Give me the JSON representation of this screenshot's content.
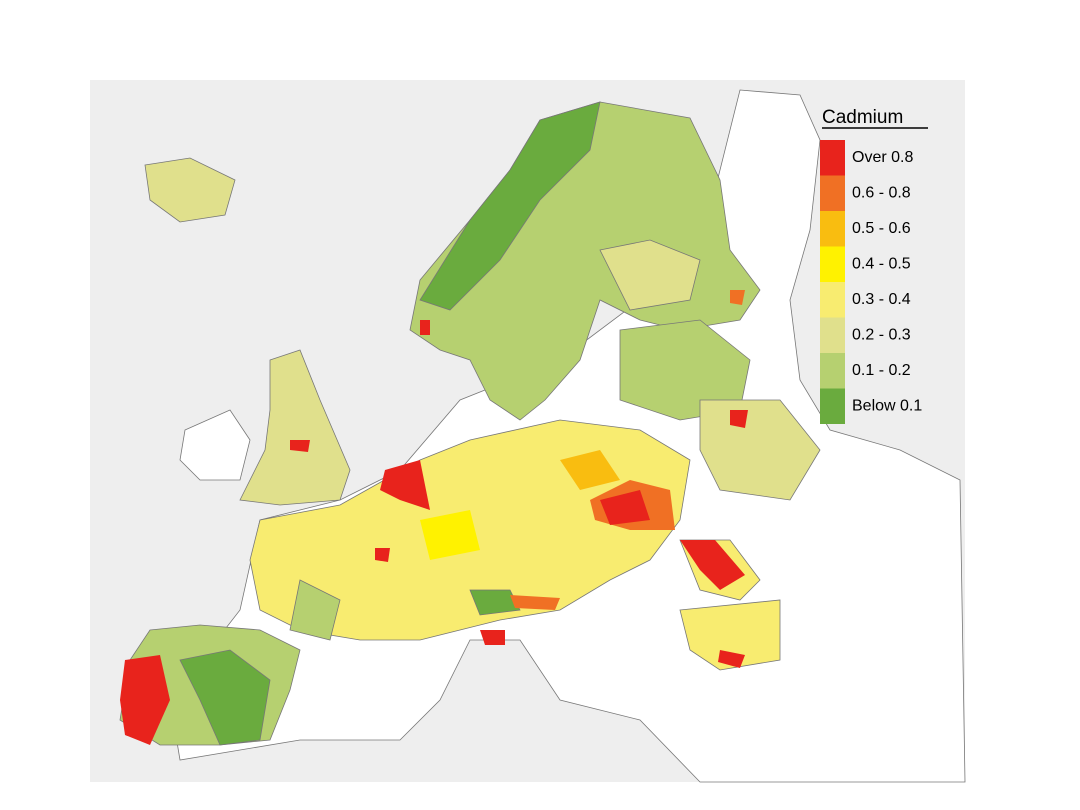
{
  "legend": {
    "title": "Cadmium",
    "items": [
      {
        "label": "Over 0.8",
        "color": "#e8231c"
      },
      {
        "label": "0.6 - 0.8",
        "color": "#f07024"
      },
      {
        "label": "0.5 - 0.6",
        "color": "#f9bd10"
      },
      {
        "label": "0.4 - 0.5",
        "color": "#fff200"
      },
      {
        "label": "0.3 - 0.4",
        "color": "#f8ec70"
      },
      {
        "label": "0.2 - 0.3",
        "color": "#e0e08c"
      },
      {
        "label": "0.1 - 0.2",
        "color": "#b6d070"
      },
      {
        "label": "Below 0.1",
        "color": "#6aab3e"
      }
    ]
  }
}
